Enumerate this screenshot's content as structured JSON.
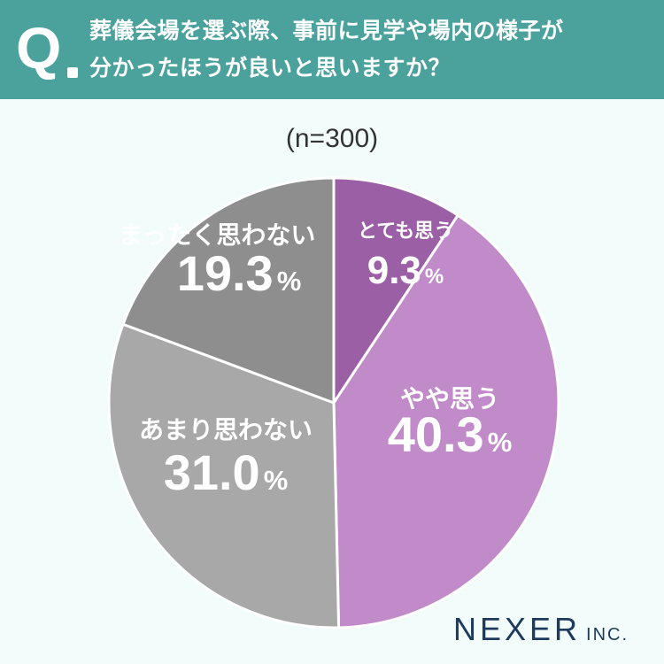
{
  "header": {
    "q_letter": "Q",
    "question_line1": "葬儀会場を選ぶ際、事前に見学や場内の様子が",
    "question_line2": "分かったほうが良いと思いますか？"
  },
  "sample_size": "(n=300)",
  "logo": {
    "main": "NEXER",
    "sub": "INC."
  },
  "colors": {
    "header_bg": "#4ba29c",
    "background": "#f1fcfb",
    "slice_1": "#9b5fa6",
    "slice_2": "#c18ac9",
    "slice_3": "#a8a8a8",
    "slice_4": "#8e8e8e",
    "slice_border": "#ffffff"
  },
  "chart_data": {
    "type": "pie",
    "title": "",
    "start": "12 o'clock, clockwise",
    "slices": [
      {
        "label": "とても思う",
        "value": 9.3,
        "display": "9.3",
        "unit": "%",
        "color": "#9b5fa6"
      },
      {
        "label": "やや思う",
        "value": 40.3,
        "display": "40.3",
        "unit": "%",
        "color": "#c18ac9"
      },
      {
        "label": "あまり思わない",
        "value": 31.0,
        "display": "31.0",
        "unit": "%",
        "color": "#a8a8a8"
      },
      {
        "label": "まったく思わない",
        "value": 19.3,
        "display": "19.3",
        "unit": "%",
        "color": "#8e8e8e"
      }
    ]
  }
}
